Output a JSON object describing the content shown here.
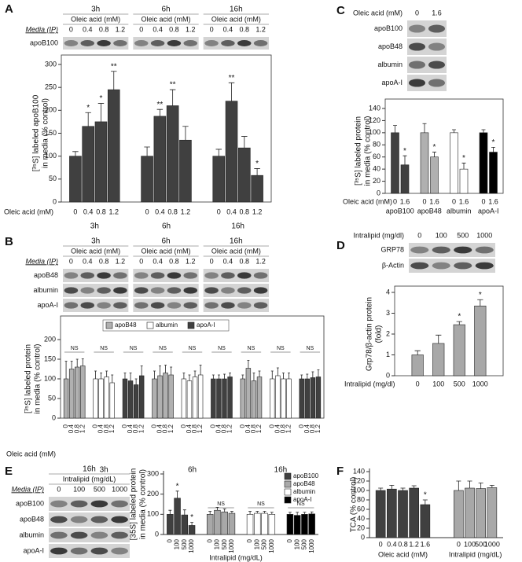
{
  "chart_data": [
    {
      "panel": "A",
      "type": "bar",
      "ylabel": [
        "[³⁵S] labeled apoB100",
        "in media (% control)"
      ],
      "xlabel": "Oleic acid (mM)",
      "groups": [
        "3h",
        "6h",
        "16h"
      ],
      "categories": [
        "0",
        "0.4",
        "0.8",
        "1.2",
        "0",
        "0.4",
        "0.8",
        "1.2",
        "0",
        "0.4",
        "0.8",
        "1.2"
      ],
      "series": [
        {
          "color": "#404040",
          "values": [
            100,
            165,
            175,
            245,
            100,
            187,
            210,
            135,
            100,
            220,
            118,
            58
          ],
          "errors": [
            10,
            30,
            40,
            40,
            20,
            15,
            35,
            30,
            15,
            40,
            25,
            15
          ],
          "stars": [
            null,
            "*",
            "*",
            "**",
            null,
            "**",
            "**",
            null,
            null,
            "**",
            null,
            "*"
          ]
        }
      ],
      "ylim": [
        0,
        300
      ],
      "yticks": [
        0,
        50,
        100,
        150,
        200,
        250,
        300
      ],
      "blot": {
        "header": [
          "3h",
          "6h",
          "16h"
        ],
        "treatment": "Oleic acid (mM)",
        "media": "Media (IP)",
        "lanes": [
          "0",
          "0.4",
          "0.8",
          "1.2"
        ],
        "rows": [
          "apoB100"
        ]
      }
    },
    {
      "panel": "B",
      "type": "bar",
      "ylabel": [
        "[³⁵S] labeled protein",
        "in media (% control)"
      ],
      "xlabel": "Oleic acid (mM)",
      "groups": [
        "3h",
        "6h",
        "16h"
      ],
      "legend": "top",
      "rotate_categories": true,
      "categories": [
        "0",
        "0.4",
        "0.8",
        "1.2",
        "0",
        "0.4",
        "0.8",
        "1.2",
        "0",
        "0.4",
        "0.8",
        "1.2"
      ],
      "series": [
        {
          "name": "apoB48",
          "color": "#b0b0b0",
          "values": [
            100,
            125,
            130,
            133,
            100,
            108,
            115,
            110,
            100,
            127,
            95,
            105
          ],
          "errors": [
            45,
            20,
            20,
            18,
            20,
            25,
            20,
            20,
            10,
            20,
            20,
            15
          ],
          "ns": [
            "NS",
            "NS",
            "NS"
          ]
        },
        {
          "name": "albumin",
          "color": "#ffffff",
          "values": [
            100,
            100,
            105,
            90,
            100,
            95,
            105,
            110,
            100,
            108,
            100,
            100
          ],
          "errors": [
            20,
            15,
            15,
            20,
            15,
            15,
            15,
            25,
            20,
            20,
            15,
            15
          ],
          "ns": [
            "NS",
            "NS",
            "NS"
          ]
        },
        {
          "name": "apoA-I",
          "color": "#404040",
          "values": [
            100,
            95,
            85,
            108,
            100,
            100,
            100,
            105,
            100,
            100,
            103,
            105
          ],
          "errors": [
            15,
            20,
            15,
            25,
            10,
            10,
            12,
            10,
            10,
            12,
            15,
            18
          ],
          "ns": [
            "NS",
            "NS",
            "NS"
          ]
        }
      ],
      "ylim": [
        0,
        200
      ],
      "yticks": [
        0,
        50,
        100,
        150,
        200
      ],
      "blot": {
        "header": [
          "3h",
          "6h",
          "16h"
        ],
        "treatment": "Oleic acid (mM)",
        "media": "Media (IP)",
        "lanes": [
          "0",
          "0.4",
          "0.8",
          "1.2"
        ],
        "rows": [
          "apoB48",
          "albumin",
          "apoA-I"
        ]
      }
    },
    {
      "panel": "C",
      "type": "bar",
      "ylabel": [
        "[³⁵S] labeled protein",
        "in media (% control)"
      ],
      "xlabel": "Oleic acid (mM)",
      "series_labels": "below",
      "categories": [
        "0",
        "1.6"
      ],
      "series": [
        {
          "name": "apoB100",
          "color": "#404040",
          "values": [
            100,
            47
          ],
          "errors": [
            12,
            15
          ],
          "stars": [
            null,
            "*"
          ]
        },
        {
          "name": "apoB48",
          "color": "#b0b0b0",
          "values": [
            100,
            60
          ],
          "errors": [
            15,
            8
          ],
          "stars": [
            null,
            "*"
          ]
        },
        {
          "name": "albumin",
          "color": "#ffffff",
          "values": [
            100,
            40
          ],
          "errors": [
            5,
            10
          ],
          "stars": [
            null,
            "*"
          ]
        },
        {
          "name": "apoA-I",
          "color": "#000000",
          "values": [
            100,
            68
          ],
          "errors": [
            5,
            8
          ],
          "stars": [
            null,
            "*"
          ]
        }
      ],
      "ylim": [
        0,
        140
      ],
      "yticks": [
        0,
        20,
        40,
        60,
        80,
        100,
        120,
        140
      ],
      "blot": {
        "treatment": "Oleic acid (mM)",
        "lanes": [
          "0",
          "1.6"
        ],
        "rows": [
          "apoB100",
          "apoB48",
          "albumin",
          "apoA-I"
        ]
      }
    },
    {
      "panel": "D",
      "type": "bar",
      "ylabel": [
        "Grp78/β-actin protein",
        "(fold)"
      ],
      "xlabel": "Intralipid (mg/dl)",
      "categories": [
        "0",
        "100",
        "500",
        "1000"
      ],
      "series": [
        {
          "color": "#a8a8a8",
          "values": [
            1.0,
            1.55,
            2.45,
            3.35
          ],
          "errors": [
            0.2,
            0.4,
            0.15,
            0.3
          ],
          "stars": [
            null,
            null,
            "*",
            "*"
          ]
        }
      ],
      "ylim": [
        0,
        4
      ],
      "yticks": [
        0,
        1,
        2,
        3,
        4
      ],
      "blot": {
        "treatment": "Intralipid (mg/dl)",
        "lanes": [
          "0",
          "100",
          "500",
          "1000"
        ],
        "rows": [
          "GRP78",
          "β-Actin"
        ]
      }
    },
    {
      "panel": "E",
      "type": "bar",
      "ylabel": [
        "[35S] labeled protein",
        "in media (% control)"
      ],
      "xlabel": "Intralipid (mg/dL)",
      "legend": "top right",
      "rotate_categories": true,
      "categories": [
        "0",
        "100",
        "500",
        "1000"
      ],
      "series": [
        {
          "name": "apoB100",
          "color": "#404040",
          "values": [
            100,
            180,
            97,
            45
          ],
          "errors": [
            20,
            35,
            25,
            15
          ],
          "stars": [
            null,
            "*",
            null,
            "*"
          ]
        },
        {
          "name": "apoB48",
          "color": "#a8a8a8",
          "values": [
            100,
            120,
            112,
            105
          ],
          "errors": [
            15,
            15,
            15,
            10
          ],
          "ns": [
            "NS"
          ]
        },
        {
          "name": "albumin",
          "color": "#ffffff",
          "values": [
            100,
            105,
            105,
            100
          ],
          "errors": [
            15,
            10,
            10,
            10
          ],
          "ns": [
            "NS"
          ]
        },
        {
          "name": "apoA-I",
          "color": "#000000",
          "values": [
            100,
            95,
            100,
            102
          ],
          "errors": [
            10,
            15,
            10,
            10
          ],
          "ns": [
            "NS"
          ]
        }
      ],
      "ylim": [
        0,
        300
      ],
      "yticks": [
        0,
        100,
        200,
        300
      ],
      "blot": {
        "header": [
          "16h"
        ],
        "treatment": "Intralipid (mg/dL)",
        "media": "Media (IP)",
        "lanes": [
          "0",
          "100",
          "500",
          "1000"
        ],
        "rows": [
          "apoB100",
          "apoB48",
          "albumin",
          "apoA-I"
        ]
      }
    },
    {
      "panel": "F",
      "type": "bar",
      "ylabel": [
        "TCA (% control)"
      ],
      "series": [
        {
          "color": "#404040",
          "xlabel": "Oleic acid (mM)",
          "categories": [
            "0",
            "0.4",
            "0.8",
            "1.2",
            "1.6"
          ],
          "values": [
            100,
            103,
            100,
            105,
            70
          ],
          "errors": [
            5,
            8,
            5,
            5,
            10
          ],
          "stars": [
            null,
            null,
            null,
            null,
            "*"
          ]
        },
        {
          "color": "#a8a8a8",
          "xlabel": "Intralipid (mg/dL)",
          "categories": [
            "0",
            "100",
            "500",
            "1000"
          ],
          "values": [
            100,
            105,
            104,
            106
          ],
          "errors": [
            20,
            15,
            12,
            5
          ]
        }
      ],
      "ylim": [
        0,
        140
      ],
      "yticks": [
        0,
        20,
        40,
        60,
        80,
        100,
        120,
        140
      ]
    }
  ]
}
